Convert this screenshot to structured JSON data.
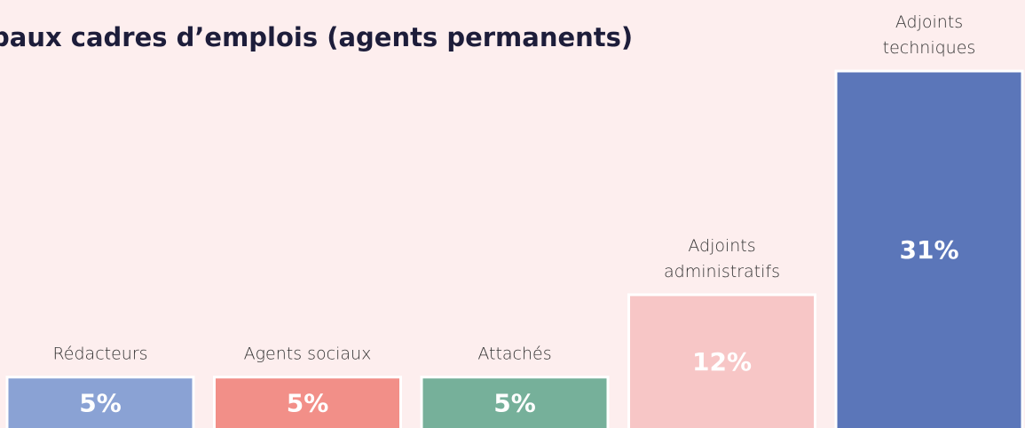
{
  "chart_data": {
    "type": "bar",
    "title": "paux cadres d’emplois (agents permanents)",
    "categories": [
      "Rédacteurs",
      "Agents sociaux",
      "Attachés",
      "Adjoints administratifs",
      "Adjoints techniques"
    ],
    "values": [
      5,
      5,
      5,
      12,
      31
    ],
    "value_labels": [
      "5%",
      "5%",
      "5%",
      "12%",
      "31%"
    ],
    "colors": [
      "#8aa2d4",
      "#f28f88",
      "#76b09a",
      "#f7c6c6",
      "#5b76b9"
    ]
  }
}
